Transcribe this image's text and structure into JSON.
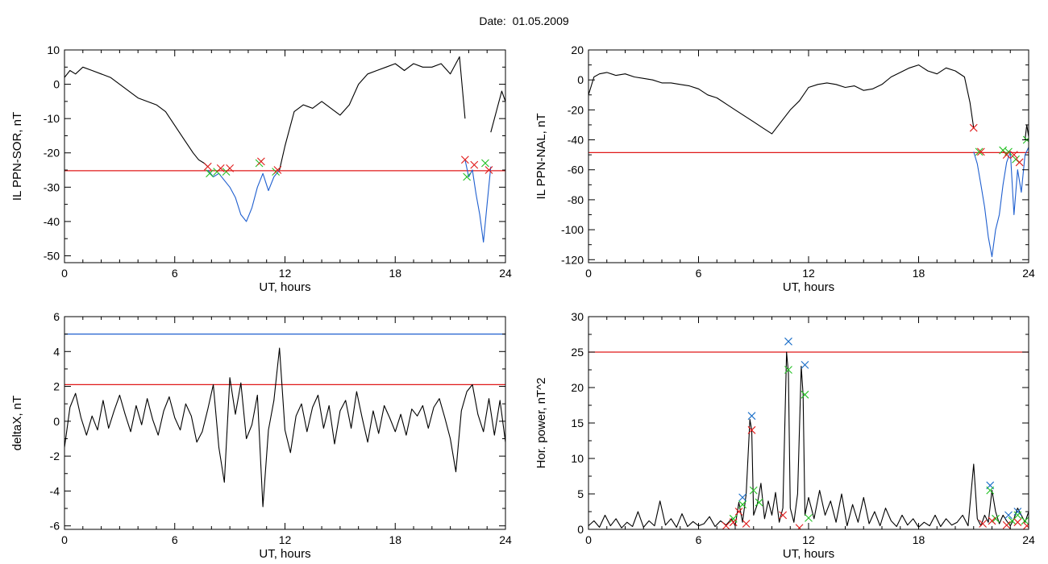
{
  "page": {
    "title": "Date:  01.05.2009"
  },
  "colors": {
    "black": "#000000",
    "red": "#e01818",
    "blue": "#1f5fcf",
    "green": "#22c022",
    "marker_blue": "#1a6ec8"
  },
  "chart_data": [
    {
      "id": "tl",
      "type": "line",
      "title": "",
      "xlabel": "UT, hours",
      "ylabel": "IL PPN-SOR, nT",
      "xlim": [
        0,
        24
      ],
      "ylim": [
        -52,
        10
      ],
      "xticks": [
        0,
        6,
        12,
        18,
        24
      ],
      "yticks": [
        10,
        0,
        -10,
        -20,
        -30,
        -40,
        -50
      ],
      "threshold_lines": [
        {
          "y": -25.2,
          "color": "#e01818"
        }
      ],
      "series": [
        {
          "color": "#000000",
          "x": [
            0,
            0.3,
            0.6,
            1,
            1.5,
            2,
            2.5,
            3,
            3.5,
            4,
            4.5,
            5,
            5.5,
            6,
            6.5,
            7,
            7.3,
            7.6,
            7.8
          ],
          "y": [
            2,
            4,
            3,
            5,
            4,
            3,
            2,
            0,
            -2,
            -4,
            -5,
            -6,
            -8,
            -12,
            -16,
            -20,
            -22,
            -23,
            -24
          ]
        },
        {
          "color": "#1f5fcf",
          "x": [
            7.8,
            8.1,
            8.4,
            8.7,
            9.0,
            9.3,
            9.6,
            9.9,
            10.2,
            10.5,
            10.8,
            11.1,
            11.4,
            11.7
          ],
          "y": [
            -25,
            -27,
            -26,
            -28,
            -30,
            -33,
            -38,
            -40,
            -36,
            -30,
            -26,
            -31,
            -27,
            -25
          ]
        },
        {
          "color": "#000000",
          "x": [
            11.7,
            12,
            12.5,
            13,
            13.5,
            14,
            14.5,
            15,
            15.5,
            16,
            16.5,
            17,
            17.5,
            18,
            18.5,
            19,
            19.5,
            20,
            20.5,
            21,
            21.5,
            21.8
          ],
          "y": [
            -25,
            -18,
            -8,
            -6,
            -7,
            -5,
            -7,
            -9,
            -6,
            0,
            3,
            4,
            5,
            6,
            4,
            6,
            5,
            5,
            6,
            3,
            8,
            -10
          ]
        },
        {
          "color": "#1f5fcf",
          "x": [
            21.8,
            22.0,
            22.2,
            22.4,
            22.6,
            22.8,
            23.0,
            23.2
          ],
          "y": [
            -22,
            -27,
            -25,
            -32,
            -38,
            -46,
            -35,
            -24
          ]
        },
        {
          "color": "#000000",
          "x": [
            23.2,
            23.5,
            23.8,
            24
          ],
          "y": [
            -14,
            -8,
            -2,
            -5
          ]
        }
      ],
      "markers": [
        {
          "color": "#22c022",
          "x": [
            7.9,
            8.3,
            8.8,
            10.6,
            11.5,
            21.9,
            22.9
          ],
          "y": [
            -26,
            -25.5,
            -25.5,
            -23,
            -25.5,
            -27,
            -23
          ]
        },
        {
          "color": "#e01818",
          "x": [
            7.8,
            8.5,
            9.0,
            10.7,
            11.6,
            21.8,
            22.3,
            23.1
          ],
          "y": [
            -24,
            -24.5,
            -24.5,
            -22.5,
            -25,
            -22,
            -23.5,
            -25
          ]
        }
      ]
    },
    {
      "id": "tr",
      "type": "line",
      "title": "",
      "xlabel": "UT, hours",
      "ylabel": "IL PPN-NAL, nT",
      "xlim": [
        0,
        24
      ],
      "ylim": [
        -122,
        20
      ],
      "xticks": [
        0,
        6,
        12,
        18,
        24
      ],
      "yticks": [
        20,
        0,
        -20,
        -40,
        -60,
        -80,
        -100,
        -120
      ],
      "threshold_lines": [
        {
          "y": -48.5,
          "color": "#e01818"
        }
      ],
      "series": [
        {
          "color": "#000000",
          "x": [
            0,
            0.3,
            0.6,
            1,
            1.5,
            2,
            2.5,
            3,
            3.5,
            4,
            4.5,
            5,
            5.5,
            6,
            6.5,
            7,
            7.5,
            8,
            8.5,
            9,
            9.5,
            10,
            10.5,
            11,
            11.5,
            12,
            12.5,
            13,
            13.5,
            14,
            14.5,
            15,
            15.5,
            16,
            16.5,
            17,
            17.5,
            18,
            18.5,
            19,
            19.5,
            20,
            20.5,
            20.8,
            21
          ],
          "y": [
            -10,
            2,
            4,
            5,
            3,
            4,
            2,
            1,
            0,
            -2,
            -2,
            -3,
            -4,
            -6,
            -10,
            -12,
            -16,
            -20,
            -24,
            -28,
            -32,
            -36,
            -28,
            -20,
            -14,
            -5,
            -3,
            -2,
            -3,
            -5,
            -4,
            -7,
            -6,
            -3,
            2,
            5,
            8,
            10,
            6,
            4,
            8,
            6,
            2,
            -15,
            -32
          ]
        },
        {
          "color": "#1f5fcf",
          "x": [
            21,
            21.2,
            21.4,
            21.6,
            21.8,
            22.0,
            22.2,
            22.4,
            22.6,
            22.8,
            23.0,
            23.2,
            23.4,
            23.6,
            23.8,
            24
          ],
          "y": [
            -48,
            -56,
            -70,
            -85,
            -105,
            -118,
            -100,
            -90,
            -70,
            -55,
            -48,
            -90,
            -60,
            -75,
            -50,
            -45
          ]
        },
        {
          "color": "#000000",
          "x": [
            23.8,
            23.9,
            24
          ],
          "y": [
            -40,
            -30,
            -38
          ]
        }
      ],
      "markers": [
        {
          "color": "#22c022",
          "x": [
            21.3,
            22.6,
            22.9,
            23.3,
            23.9
          ],
          "y": [
            -48,
            -47,
            -48,
            -53,
            -40
          ]
        },
        {
          "color": "#e01818",
          "x": [
            21.0,
            21.4,
            22.8,
            23.2,
            23.5
          ],
          "y": [
            -32,
            -48,
            -50,
            -50,
            -55
          ]
        }
      ]
    },
    {
      "id": "bl",
      "type": "line",
      "title": "",
      "xlabel": "UT, hours",
      "ylabel": "deltaX, nT",
      "xlim": [
        0,
        24
      ],
      "ylim": [
        -6.2,
        6
      ],
      "xticks": [
        0,
        6,
        12,
        18,
        24
      ],
      "yticks": [
        6,
        4,
        2,
        0,
        -2,
        -4,
        -6
      ],
      "threshold_lines": [
        {
          "y": 5.0,
          "color": "#1f5fcf"
        },
        {
          "y": 2.1,
          "color": "#e01818"
        }
      ],
      "series": [
        {
          "color": "#000000",
          "x": [
            0,
            0.3,
            0.6,
            0.9,
            1.2,
            1.5,
            1.8,
            2.1,
            2.4,
            2.7,
            3.0,
            3.3,
            3.6,
            3.9,
            4.2,
            4.5,
            4.8,
            5.1,
            5.4,
            5.7,
            6.0,
            6.3,
            6.6,
            6.9,
            7.2,
            7.5,
            7.8,
            8.1,
            8.4,
            8.7,
            9.0,
            9.3,
            9.6,
            9.9,
            10.2,
            10.5,
            10.8,
            11.1,
            11.4,
            11.7,
            12.0,
            12.3,
            12.6,
            12.9,
            13.2,
            13.5,
            13.8,
            14.1,
            14.4,
            14.7,
            15.0,
            15.3,
            15.6,
            15.9,
            16.2,
            16.5,
            16.8,
            17.1,
            17.4,
            17.7,
            18.0,
            18.3,
            18.6,
            18.9,
            19.2,
            19.5,
            19.8,
            20.1,
            20.4,
            20.7,
            21.0,
            21.3,
            21.6,
            21.9,
            22.2,
            22.5,
            22.8,
            23.1,
            23.4,
            23.7,
            24.0
          ],
          "y": [
            -1.5,
            0.8,
            1.6,
            0.2,
            -0.8,
            0.3,
            -0.5,
            1.2,
            -0.4,
            0.6,
            1.5,
            0.4,
            -0.6,
            0.9,
            -0.2,
            1.3,
            0.1,
            -0.8,
            0.6,
            1.4,
            0.2,
            -0.5,
            1.0,
            0.3,
            -1.2,
            -0.6,
            0.7,
            2.1,
            -1.5,
            -3.5,
            2.5,
            0.4,
            2.2,
            -1.0,
            -0.2,
            1.5,
            -4.9,
            -0.5,
            1.2,
            4.2,
            -0.5,
            -1.8,
            0.3,
            1.0,
            -0.6,
            0.8,
            1.5,
            -0.4,
            0.9,
            -1.3,
            0.6,
            1.2,
            -0.4,
            1.7,
            0.2,
            -1.2,
            0.6,
            -0.7,
            0.9,
            0.2,
            -0.6,
            0.4,
            -0.8,
            0.7,
            0.3,
            0.9,
            -0.4,
            0.8,
            1.3,
            0.2,
            -1.0,
            -2.9,
            0.6,
            1.7,
            2.1,
            0.4,
            -0.6,
            1.3,
            -0.8,
            1.2,
            -1.2
          ]
        }
      ],
      "markers": []
    },
    {
      "id": "br",
      "type": "line",
      "title": "",
      "xlabel": "UT, hours",
      "ylabel": "Hor. power, nT^2",
      "xlim": [
        0,
        24
      ],
      "ylim": [
        0,
        30
      ],
      "xticks": [
        0,
        6,
        12,
        18,
        24
      ],
      "yticks": [
        30,
        25,
        20,
        15,
        10,
        5,
        0
      ],
      "threshold_lines": [
        {
          "y": 25.0,
          "color": "#e01818"
        }
      ],
      "series": [
        {
          "color": "#000000",
          "x": [
            0,
            0.3,
            0.6,
            0.9,
            1.2,
            1.5,
            1.8,
            2.1,
            2.4,
            2.7,
            3.0,
            3.3,
            3.6,
            3.9,
            4.2,
            4.5,
            4.8,
            5.1,
            5.4,
            5.7,
            6.0,
            6.3,
            6.6,
            6.9,
            7.2,
            7.5,
            7.8,
            8.0,
            8.2,
            8.4,
            8.6,
            8.8,
            8.9,
            9.0,
            9.2,
            9.4,
            9.6,
            9.8,
            10.0,
            10.2,
            10.4,
            10.6,
            10.8,
            10.9,
            11.0,
            11.2,
            11.4,
            11.6,
            11.7,
            11.8,
            12.0,
            12.3,
            12.6,
            12.9,
            13.2,
            13.5,
            13.8,
            14.1,
            14.4,
            14.7,
            15.0,
            15.3,
            15.6,
            15.9,
            16.2,
            16.5,
            16.8,
            17.1,
            17.4,
            17.7,
            18.0,
            18.3,
            18.6,
            18.9,
            19.2,
            19.5,
            19.8,
            20.1,
            20.4,
            20.7,
            21.0,
            21.2,
            21.4,
            21.6,
            21.8,
            22.0,
            22.2,
            22.4,
            22.6,
            22.8,
            23.0,
            23.2,
            23.4,
            23.6,
            23.8,
            24.0
          ],
          "y": [
            0.5,
            1.2,
            0.3,
            2.0,
            0.5,
            1.5,
            0.2,
            1.0,
            0.4,
            2.5,
            0.3,
            1.2,
            0.5,
            4.0,
            0.6,
            1.5,
            0.3,
            2.2,
            0.4,
            1.1,
            0.5,
            0.8,
            1.8,
            0.4,
            1.2,
            0.6,
            1.5,
            0.5,
            3.8,
            1.0,
            5.0,
            15.5,
            14.0,
            2.0,
            3.5,
            6.5,
            1.5,
            4.0,
            2.0,
            5.2,
            1.0,
            3.0,
            25.0,
            22.0,
            3.0,
            1.0,
            5.0,
            23.0,
            19.0,
            2.0,
            4.5,
            1.5,
            5.5,
            2.0,
            4.0,
            1.0,
            5.0,
            0.5,
            3.5,
            1.0,
            4.5,
            0.8,
            2.5,
            0.5,
            3.0,
            1.2,
            0.4,
            2.0,
            0.6,
            1.5,
            0.3,
            1.0,
            0.5,
            2.0,
            0.4,
            1.5,
            0.6,
            1.0,
            2.0,
            0.5,
            9.2,
            1.5,
            0.5,
            2.0,
            1.0,
            5.5,
            2.5,
            0.8,
            2.0,
            1.2,
            0.5,
            1.5,
            3.0,
            2.0,
            1.0,
            2.5
          ]
        }
      ],
      "markers": [
        {
          "color": "#1a6ec8",
          "x": [
            8.4,
            8.9,
            10.9,
            11.8,
            21.9,
            22.9,
            23.4
          ],
          "y": [
            4.5,
            16.0,
            26.5,
            23.2,
            6.2,
            2.0,
            2.5
          ]
        },
        {
          "color": "#22c022",
          "x": [
            7.9,
            8.4,
            9.0,
            9.3,
            10.9,
            11.8,
            12.0,
            21.9,
            22.2,
            23.1,
            23.4,
            23.8
          ],
          "y": [
            1.5,
            3.5,
            5.5,
            3.8,
            22.5,
            19.0,
            1.6,
            5.5,
            1.5,
            1.2,
            2.0,
            1.2
          ]
        },
        {
          "color": "#e01818",
          "x": [
            7.5,
            7.9,
            8.2,
            8.6,
            8.9,
            10.6,
            11.5,
            21.5,
            22.0,
            22.8,
            23.4,
            23.9
          ],
          "y": [
            0.5,
            1.0,
            2.5,
            0.8,
            14.0,
            2.0,
            0.2,
            0.8,
            1.2,
            0.6,
            1.0,
            0.5
          ]
        }
      ]
    }
  ]
}
